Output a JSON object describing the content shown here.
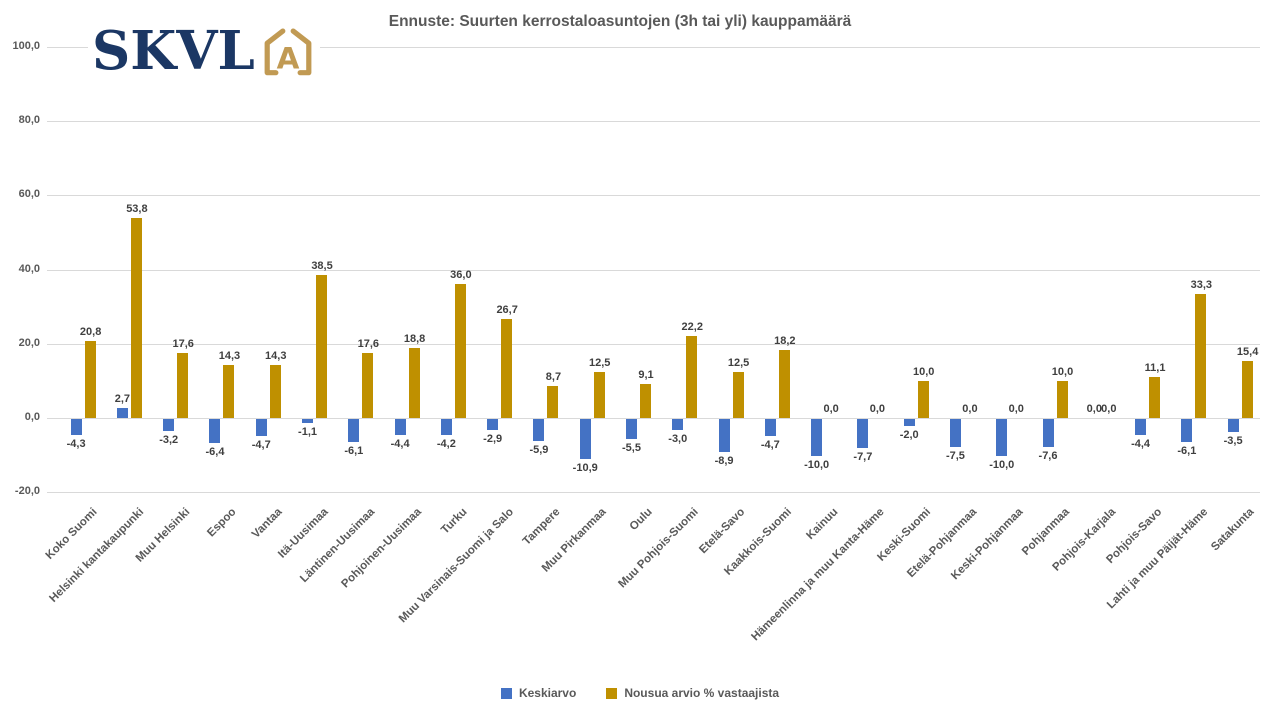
{
  "logo": {
    "text": "SKVL",
    "letter": "A",
    "navy": "#1B3764",
    "gold": "#C19A53"
  },
  "chart_data": {
    "type": "bar",
    "title": "Ennuste: Suurten kerrostaloasuntojen (3h tai yli) kauppamäärä",
    "categories": [
      "Koko Suomi",
      "Helsinki kantakaupunki",
      "Muu Helsinki",
      "Espoo",
      "Vantaa",
      "Itä-Uusimaa",
      "Läntinen-Uusimaa",
      "Pohjoinen-Uusimaa",
      "Turku",
      "Muu Varsinais-Suomi ja Salo",
      "Tampere",
      "Muu Pirkanmaa",
      "Oulu",
      "Muu Pohjois-Suomi",
      "Etelä-Savo",
      "Kaakkois-Suomi",
      "Kainuu",
      "Hämeenlinna ja muu Kanta-Häme",
      "Keski-Suomi",
      "Etelä-Pohjanmaa",
      "Keski-Pohjanmaa",
      "Pohjanmaa",
      "Pohjois-Karjala",
      "Pohjois-Savo",
      "Lahti ja muu Päijät-Häme",
      "Satakunta"
    ],
    "series": [
      {
        "name": "Keskiarvo",
        "color": "#4472C4",
        "values": [
          -4.3,
          2.7,
          -3.2,
          -6.4,
          -4.7,
          -1.1,
          -6.1,
          -4.4,
          -4.2,
          -2.9,
          -5.9,
          -10.9,
          -5.5,
          -3.0,
          -8.9,
          -4.7,
          -10.0,
          -7.7,
          -2.0,
          -7.5,
          -10.0,
          -7.6,
          0.0,
          -4.4,
          -6.1,
          -3.5
        ]
      },
      {
        "name": "Nousua arvio % vastaajista",
        "color": "#BF9000",
        "values": [
          20.8,
          53.8,
          17.6,
          14.3,
          14.3,
          38.5,
          17.6,
          18.8,
          36.0,
          26.7,
          8.7,
          12.5,
          9.1,
          22.2,
          12.5,
          18.2,
          0.0,
          0.0,
          10.0,
          0.0,
          0.0,
          10.0,
          0.0,
          11.1,
          33.3,
          15.4
        ]
      }
    ],
    "ylim": [
      -20,
      100
    ],
    "ytick_step": 20,
    "ytick_labels": [
      "100,0",
      "80,0",
      "60,0",
      "40,0",
      "20,0",
      "0,0",
      "-20,0"
    ],
    "grid": true,
    "legend_position": "bottom",
    "decimal_separator": ",",
    "grid_color": "#D9D9D9",
    "axis_text_color": "#595959",
    "value_label_color": "#3F3F3F"
  }
}
